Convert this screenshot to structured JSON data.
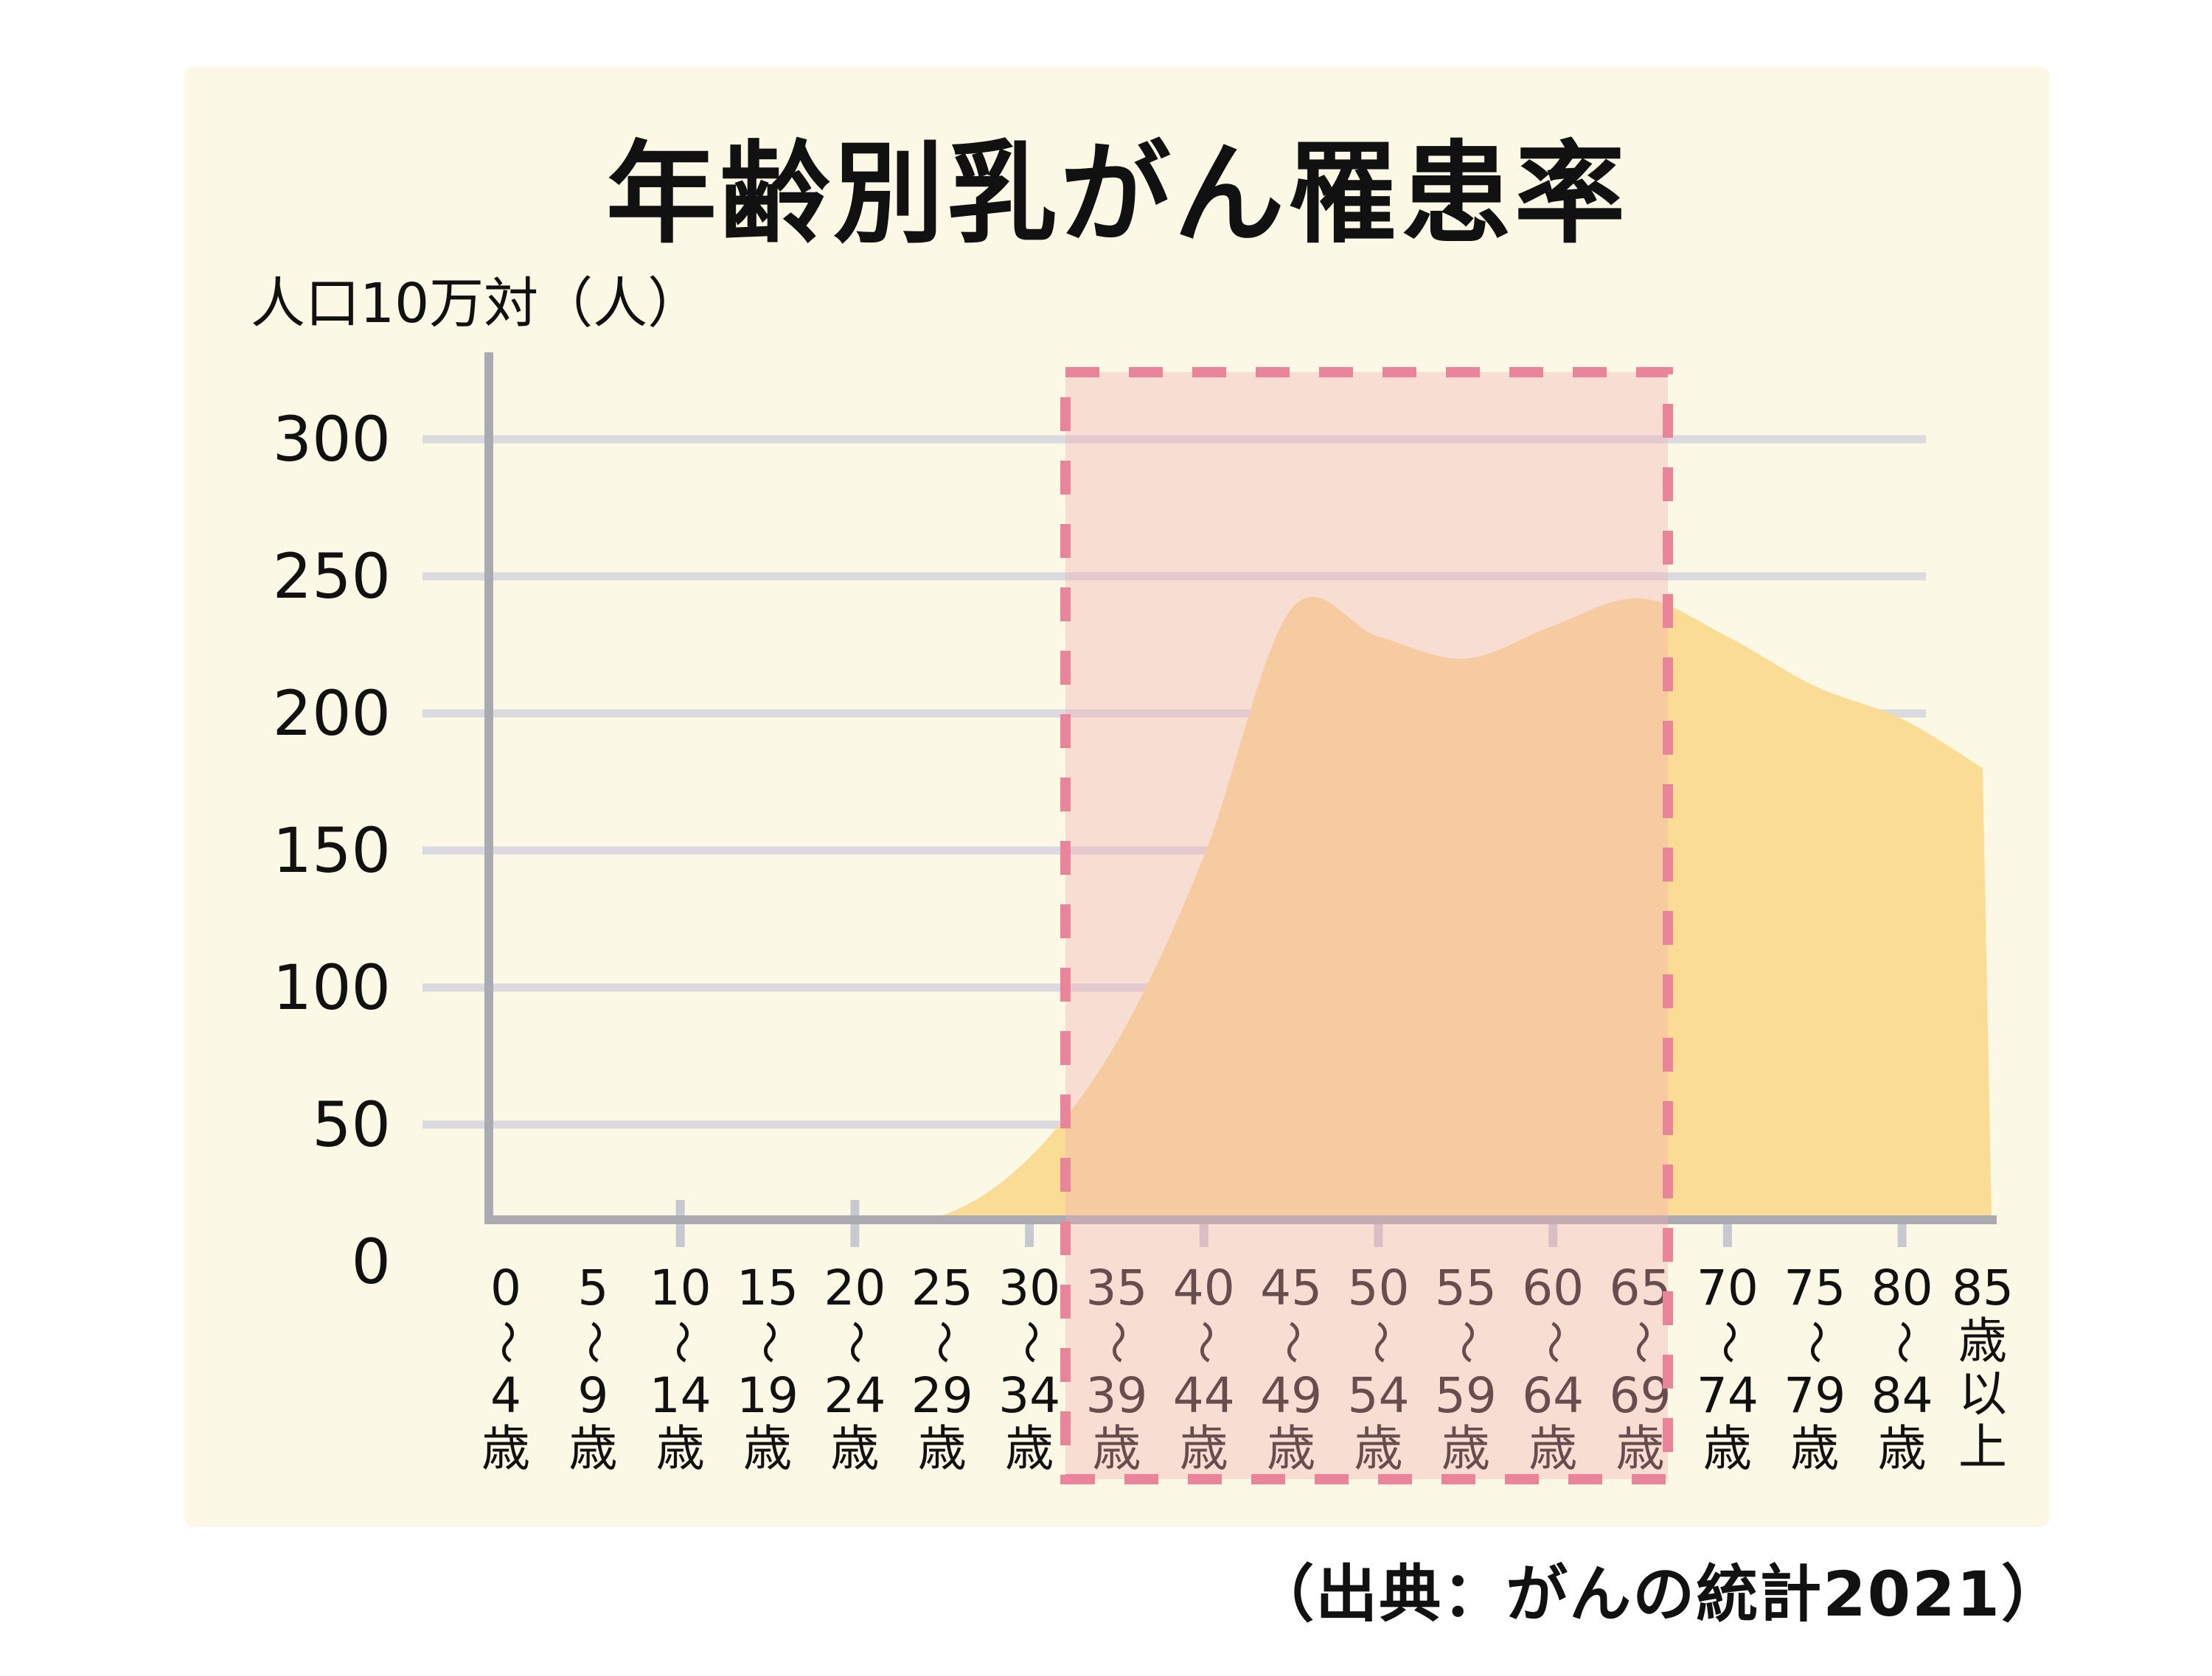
{
  "title": "年齢別乳がん罹患率",
  "y_axis": {
    "unit_label": "人口10万対（人）",
    "tick_labels": [
      "300",
      "250",
      "200",
      "150",
      "100",
      "50",
      "0"
    ]
  },
  "source_note": "（出典：がんの統計2021）",
  "chart_data": {
    "type": "area",
    "title": "年齢別乳がん罹患率",
    "ylabel": "人口10万対（人）",
    "ylim": [
      0,
      300
    ],
    "grid": true,
    "categories": [
      "0〜4歳",
      "5〜9歳",
      "10〜14歳",
      "15〜19歳",
      "20〜24歳",
      "25〜29歳",
      "30〜34歳",
      "35〜39歳",
      "40〜44歳",
      "45〜49歳",
      "50〜54歳",
      "55〜59歳",
      "60〜64歳",
      "65〜69歳",
      "70〜74歳",
      "75〜79歳",
      "80〜84歳",
      "85歳以上"
    ],
    "x_label_lines": [
      [
        "0",
        "〜",
        "4",
        "歳"
      ],
      [
        "5",
        "〜",
        "9",
        "歳"
      ],
      [
        "10",
        "〜",
        "14",
        "歳"
      ],
      [
        "15",
        "〜",
        "19",
        "歳"
      ],
      [
        "20",
        "〜",
        "24",
        "歳"
      ],
      [
        "25",
        "〜",
        "29",
        "歳"
      ],
      [
        "30",
        "〜",
        "34",
        "歳"
      ],
      [
        "35",
        "〜",
        "39",
        "歳"
      ],
      [
        "40",
        "〜",
        "44",
        "歳"
      ],
      [
        "45",
        "〜",
        "49",
        "歳"
      ],
      [
        "50",
        "〜",
        "54",
        "歳"
      ],
      [
        "55",
        "〜",
        "59",
        "歳"
      ],
      [
        "60",
        "〜",
        "64",
        "歳"
      ],
      [
        "65",
        "〜",
        "69",
        "歳"
      ],
      [
        "70",
        "〜",
        "74",
        "歳"
      ],
      [
        "75",
        "〜",
        "79",
        "歳"
      ],
      [
        "80",
        "〜",
        "84",
        "歳"
      ],
      [
        "85",
        "歳",
        "以",
        "上"
      ]
    ],
    "values": [
      0,
      0,
      0,
      1,
      2,
      9,
      38,
      80,
      148,
      238,
      228,
      220,
      232,
      242,
      228,
      210,
      198,
      180
    ],
    "y_gridline_values": [
      300,
      250,
      200,
      150,
      100,
      50
    ],
    "x_tick_ages": [
      10,
      20,
      30,
      40,
      50,
      60,
      70,
      80
    ],
    "highlight_range": {
      "from": "35〜39歳",
      "to": "65〜69歳",
      "from_index": 7,
      "to_index": 13,
      "style": "pink dashed rectangle"
    },
    "colors": {
      "panel_background": "#FCF8E6",
      "area_fill": "#FBDC95",
      "gridline": "#DADAE0",
      "axis": "#AAAAB2",
      "tick": "#C8C8D0",
      "highlight_fill": "rgba(243,176,180,0.38)",
      "highlight_border": "#E9849B",
      "text": "#111111"
    }
  }
}
